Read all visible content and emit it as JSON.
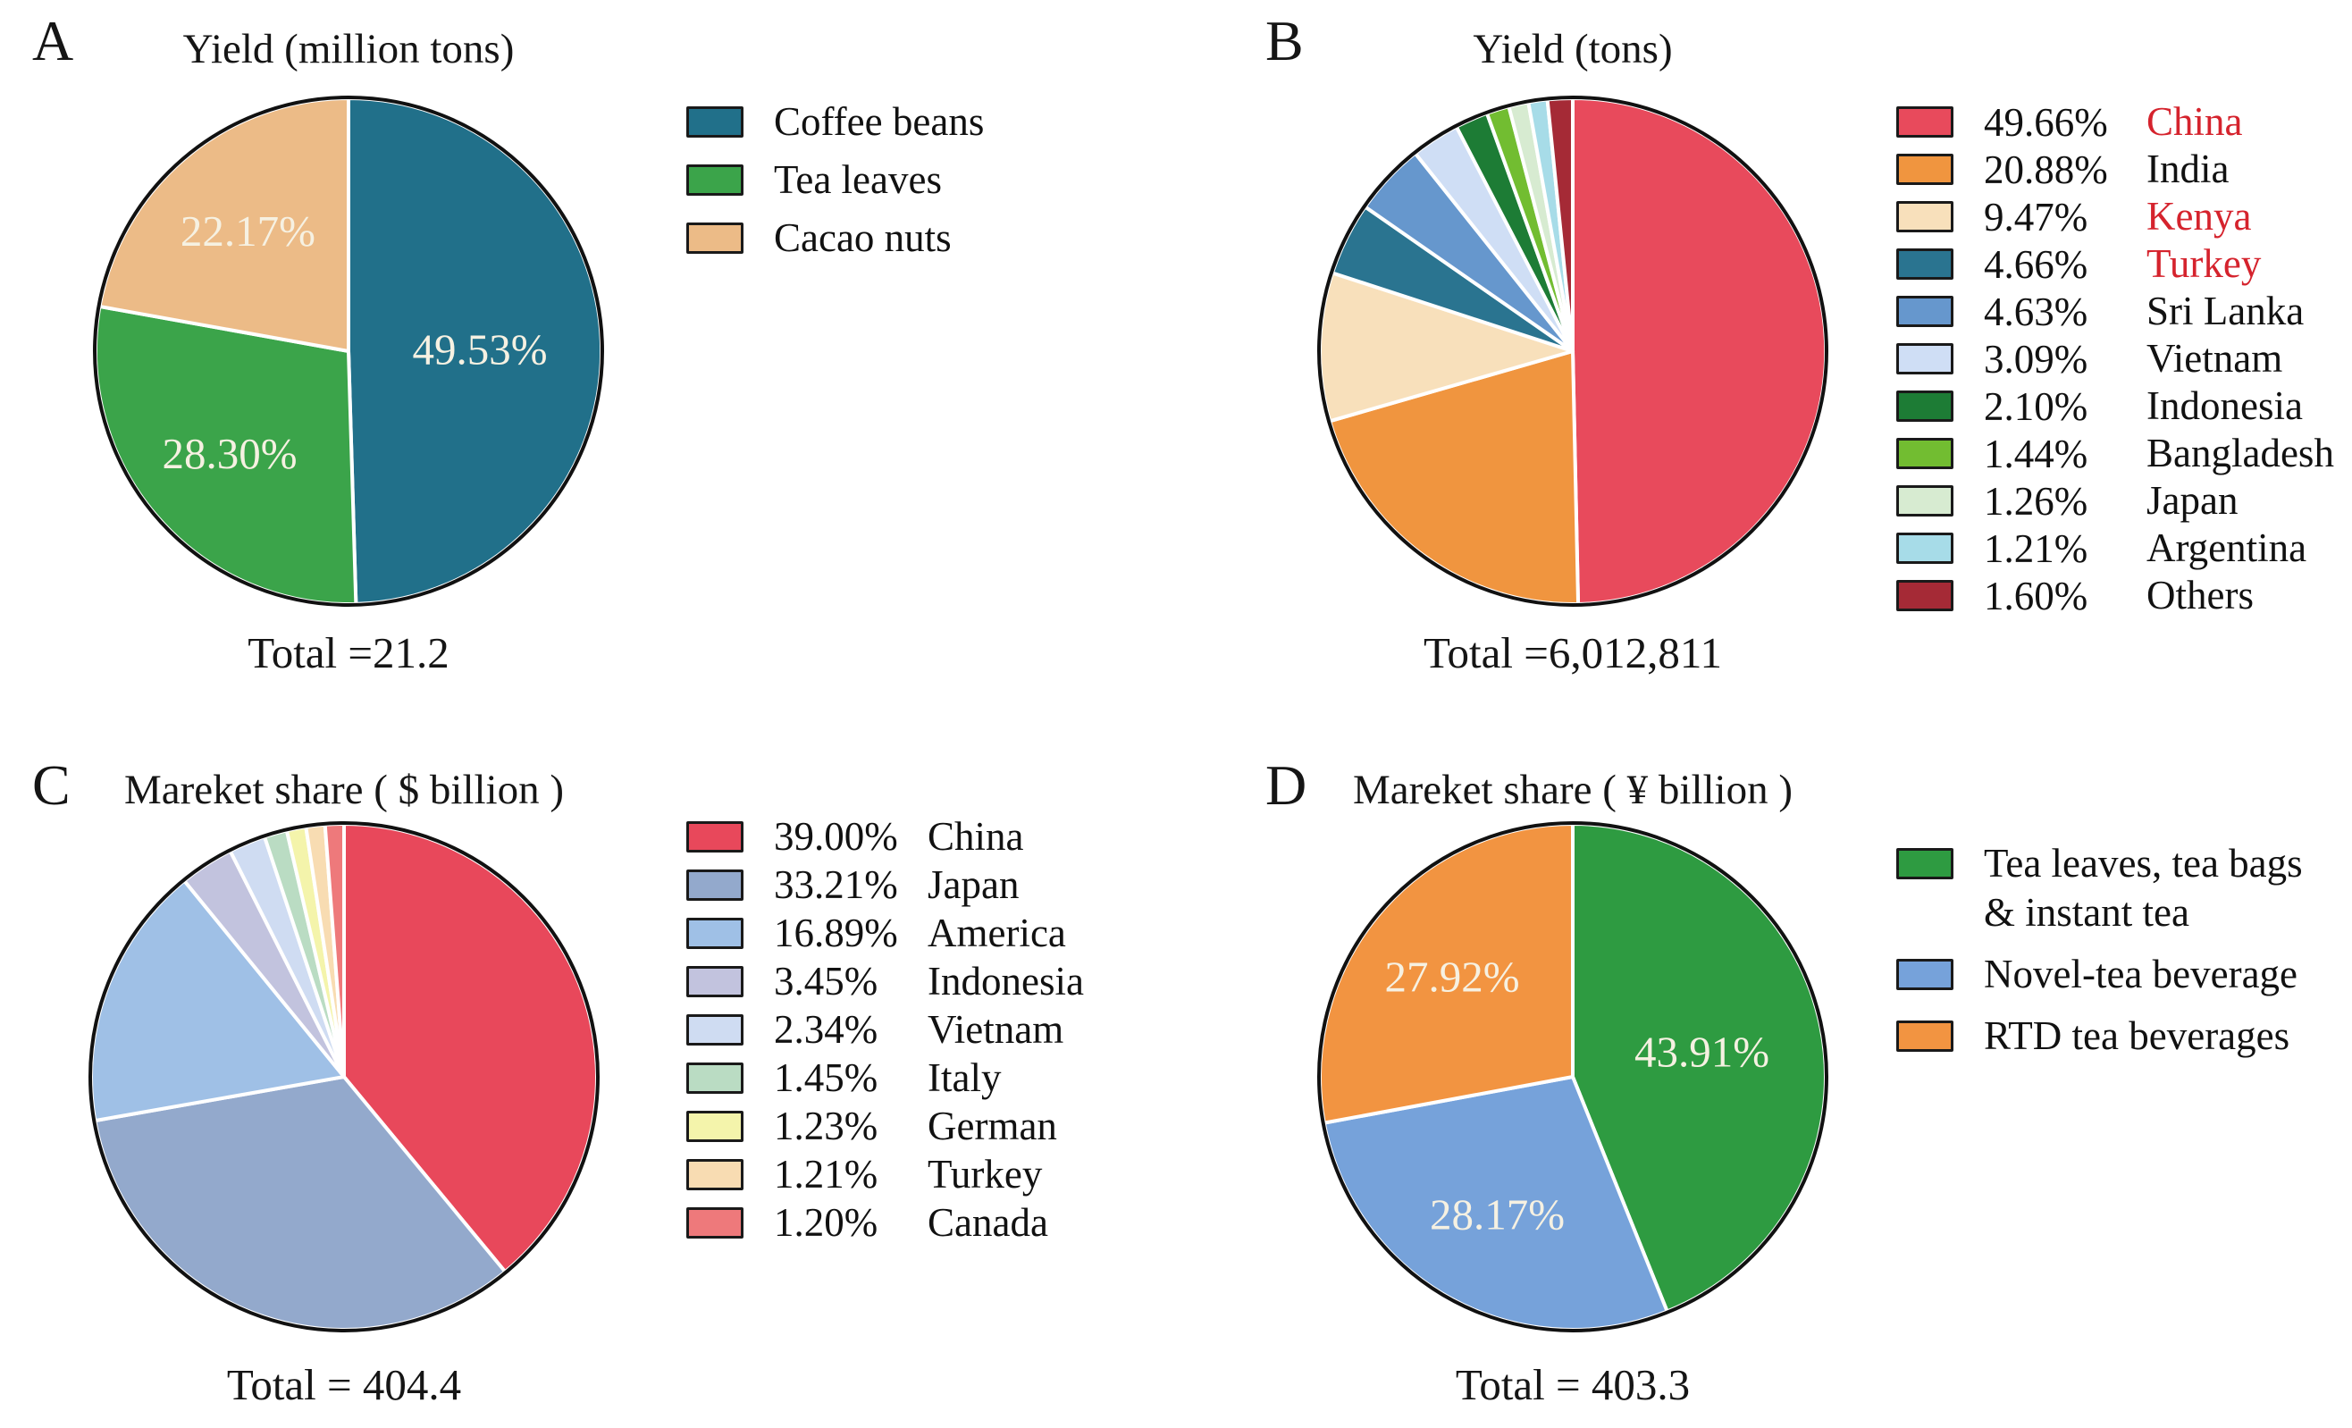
{
  "figure_caption_letters": [
    "A",
    "B",
    "C",
    "D"
  ],
  "chart_data": [
    {
      "panel": "A",
      "type": "pie",
      "title": "Yield (million tons)",
      "total_label": "Total =21.2",
      "total_value": 21.2,
      "legend_position": "right",
      "legend_shows_pct": false,
      "slices": [
        {
          "name": "Coffee beans",
          "value": 49.53,
          "pct_label": "49.53%",
          "inside_label": "49.53%",
          "label_r": 0.52,
          "color": "#21708a"
        },
        {
          "name": "Tea leaves",
          "value": 28.3,
          "pct_label": "28.30%",
          "inside_label": "28.30%",
          "label_r": 0.62,
          "color": "#3ba44a"
        },
        {
          "name": "Cacao nuts",
          "value": 22.17,
          "pct_label": "22.17%",
          "inside_label": "22.17%",
          "label_r": 0.62,
          "color": "#ecbb87"
        }
      ]
    },
    {
      "panel": "B",
      "type": "pie",
      "title": "Yield (tons)",
      "total_label": "Total =6,012,811",
      "total_value": "6,012,811",
      "legend_position": "right",
      "legend_shows_pct": true,
      "highlight_color": "#d5232d",
      "slices": [
        {
          "name": "China",
          "value": 49.66,
          "pct_label": "49.66%",
          "color": "#e84a5c",
          "name_color": "#d5232d"
        },
        {
          "name": "India",
          "value": 20.88,
          "pct_label": "20.88%",
          "color": "#f0953f"
        },
        {
          "name": "Kenya",
          "value": 9.47,
          "pct_label": "9.47%",
          "color": "#f8e0bb",
          "name_color": "#d5232d"
        },
        {
          "name": "Turkey",
          "value": 4.66,
          "pct_label": "4.66%",
          "color": "#2a7490",
          "name_color": "#d5232d"
        },
        {
          "name": "Sri Lanka",
          "value": 4.63,
          "pct_label": "4.63%",
          "color": "#6697cd"
        },
        {
          "name": "Vietnam",
          "value": 3.09,
          "pct_label": "3.09%",
          "color": "#cfdef5"
        },
        {
          "name": "Indonesia",
          "value": 2.1,
          "pct_label": "2.10%",
          "color": "#1d7c35"
        },
        {
          "name": "Bangladesh",
          "value": 1.44,
          "pct_label": "1.44%",
          "color": "#72bd31"
        },
        {
          "name": "Japan",
          "value": 1.26,
          "pct_label": "1.26%",
          "color": "#d7ebd1"
        },
        {
          "name": "Argentina",
          "value": 1.21,
          "pct_label": "1.21%",
          "color": "#a7dce8"
        },
        {
          "name": "Others",
          "value": 1.6,
          "pct_label": "1.60%",
          "color": "#a52a36"
        }
      ]
    },
    {
      "panel": "C",
      "type": "pie",
      "title": "Mareket share ( $ billion )",
      "total_label": "Total = 404.4",
      "total_value": 404.4,
      "legend_position": "right",
      "legend_shows_pct": true,
      "slices": [
        {
          "name": "China",
          "value": 39.0,
          "pct_label": "39.00%",
          "color": "#e8485b"
        },
        {
          "name": "Japan",
          "value": 33.21,
          "pct_label": "33.21%",
          "color": "#93a9cc"
        },
        {
          "name": "America",
          "value": 16.89,
          "pct_label": "16.89%",
          "color": "#9fc0e6"
        },
        {
          "name": "Indonesia",
          "value": 3.45,
          "pct_label": "3.45%",
          "color": "#c2c3de"
        },
        {
          "name": "Vietnam",
          "value": 2.34,
          "pct_label": "2.34%",
          "color": "#cfdcf2"
        },
        {
          "name": "Italy",
          "value": 1.45,
          "pct_label": "1.45%",
          "color": "#badcc3"
        },
        {
          "name": "German",
          "value": 1.23,
          "pct_label": "1.23%",
          "color": "#f4f4ab"
        },
        {
          "name": "Turkey",
          "value": 1.21,
          "pct_label": "1.21%",
          "color": "#f8dcb2"
        },
        {
          "name": "Canada",
          "value": 1.2,
          "pct_label": "1.20%",
          "color": "#ee797b"
        }
      ]
    },
    {
      "panel": "D",
      "type": "pie",
      "title": "Mareket share ( ¥ billion )",
      "total_label": "Total = 403.3",
      "total_value": 403.3,
      "legend_position": "right",
      "legend_shows_pct": false,
      "slices": [
        {
          "name": "Tea leaves, tea bags\n& instant tea",
          "value": 43.91,
          "pct_label": "43.91%",
          "inside_label": "43.91%",
          "label_r": 0.52,
          "color": "#2e9b41"
        },
        {
          "name": "Novel-tea beverage",
          "value": 28.17,
          "pct_label": "28.17%",
          "inside_label": "28.17%",
          "label_r": 0.62,
          "color": "#76a2da"
        },
        {
          "name": "RTD tea beverages",
          "value": 27.92,
          "pct_label": "27.92%",
          "inside_label": "27.92%",
          "label_r": 0.62,
          "color": "#f29441"
        }
      ]
    }
  ]
}
